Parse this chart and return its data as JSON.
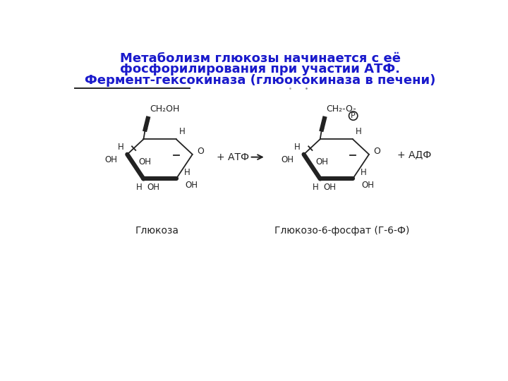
{
  "title_line1": "Метаболизм глюкозы начинается с её",
  "title_line2": "фосфорилирования при участии АТФ.",
  "title_line3": "Фермент-гексокиназа (глюококиназа в печени)",
  "title_color": "#1a1acc",
  "title_fontsize": 13,
  "bg_color": "#ffffff",
  "line_color": "#222222",
  "label1": "Глюкоза",
  "label2": "Глюкозо-6-фосфат (Г-6-Ф)",
  "atf_text": "+ АТФ",
  "adf_text": "+ АДФ"
}
